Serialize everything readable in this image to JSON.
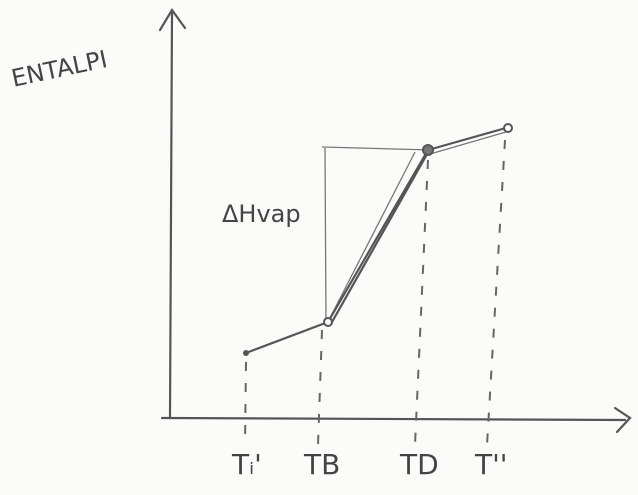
{
  "y_axis_label": "ENTALPI",
  "annotation": "ΔHvap",
  "x_labels": [
    "Tᵢ'",
    "TB",
    "TD",
    "T''"
  ]
}
